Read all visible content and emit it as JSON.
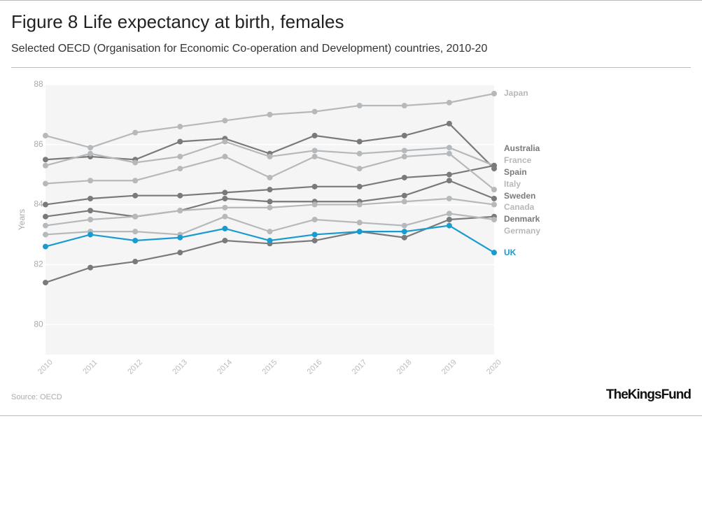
{
  "chart_data": {
    "type": "line",
    "title": "Figure 8 Life expectancy at birth, females",
    "subtitle": "Selected OECD (Organisation for Economic Co-operation and Development) countries, 2010-20",
    "y_label": "Years",
    "source": "Source: OECD",
    "logo": "TheKingsFund",
    "categories": [
      "2010",
      "2011",
      "2012",
      "2013",
      "2014",
      "2015",
      "2016",
      "2017",
      "2018",
      "2019",
      "2020"
    ],
    "ylim": [
      79,
      88
    ],
    "yticks": [
      80,
      82,
      84,
      86,
      88
    ],
    "grid": true,
    "series": [
      {
        "name": "Japan",
        "color": "#b5b9bc",
        "values": [
          86.3,
          85.9,
          86.4,
          86.6,
          86.8,
          87.0,
          87.1,
          87.3,
          87.3,
          87.4,
          87.7
        ]
      },
      {
        "name": "Australia",
        "color": "#7a7a7a",
        "values": [
          85.5,
          85.6,
          85.5,
          86.1,
          86.2,
          85.7,
          86.3,
          86.1,
          86.3,
          86.7,
          85.2
        ]
      },
      {
        "name": "France",
        "color": "#b5b9bc",
        "values": [
          85.3,
          85.7,
          85.4,
          85.6,
          86.1,
          85.6,
          85.8,
          85.7,
          85.8,
          85.9,
          85.3
        ]
      },
      {
        "name": "Spain",
        "color": "#7a7a7a",
        "values": [
          84.0,
          84.2,
          84.3,
          84.3,
          84.4,
          84.5,
          84.6,
          84.6,
          84.9,
          85.0,
          85.3
        ]
      },
      {
        "name": "Italy",
        "color": "#b5b9bc",
        "values": [
          84.7,
          84.8,
          84.8,
          85.2,
          85.6,
          84.9,
          85.6,
          85.2,
          85.6,
          85.7,
          84.5
        ]
      },
      {
        "name": "Sweden",
        "color": "#7a7a7a",
        "values": [
          83.6,
          83.8,
          83.6,
          83.8,
          84.2,
          84.1,
          84.1,
          84.1,
          84.3,
          84.8,
          84.2
        ]
      },
      {
        "name": "Canada",
        "color": "#b5b9bc",
        "values": [
          83.3,
          83.5,
          83.6,
          83.8,
          83.9,
          83.9,
          84.0,
          84.0,
          84.1,
          84.2,
          84.0
        ]
      },
      {
        "name": "Denmark",
        "color": "#7a7a7a",
        "values": [
          81.4,
          81.9,
          82.1,
          82.4,
          82.8,
          82.7,
          82.8,
          83.1,
          82.9,
          83.5,
          83.6
        ]
      },
      {
        "name": "Germany",
        "color": "#b5b9bc",
        "values": [
          83.0,
          83.1,
          83.1,
          83.0,
          83.6,
          83.1,
          83.5,
          83.4,
          83.3,
          83.7,
          83.5
        ]
      },
      {
        "name": "UK",
        "color": "#1a9bd0",
        "values": [
          82.6,
          83.0,
          82.8,
          82.9,
          83.2,
          82.8,
          83.0,
          83.1,
          83.1,
          83.3,
          82.4
        ]
      }
    ]
  }
}
